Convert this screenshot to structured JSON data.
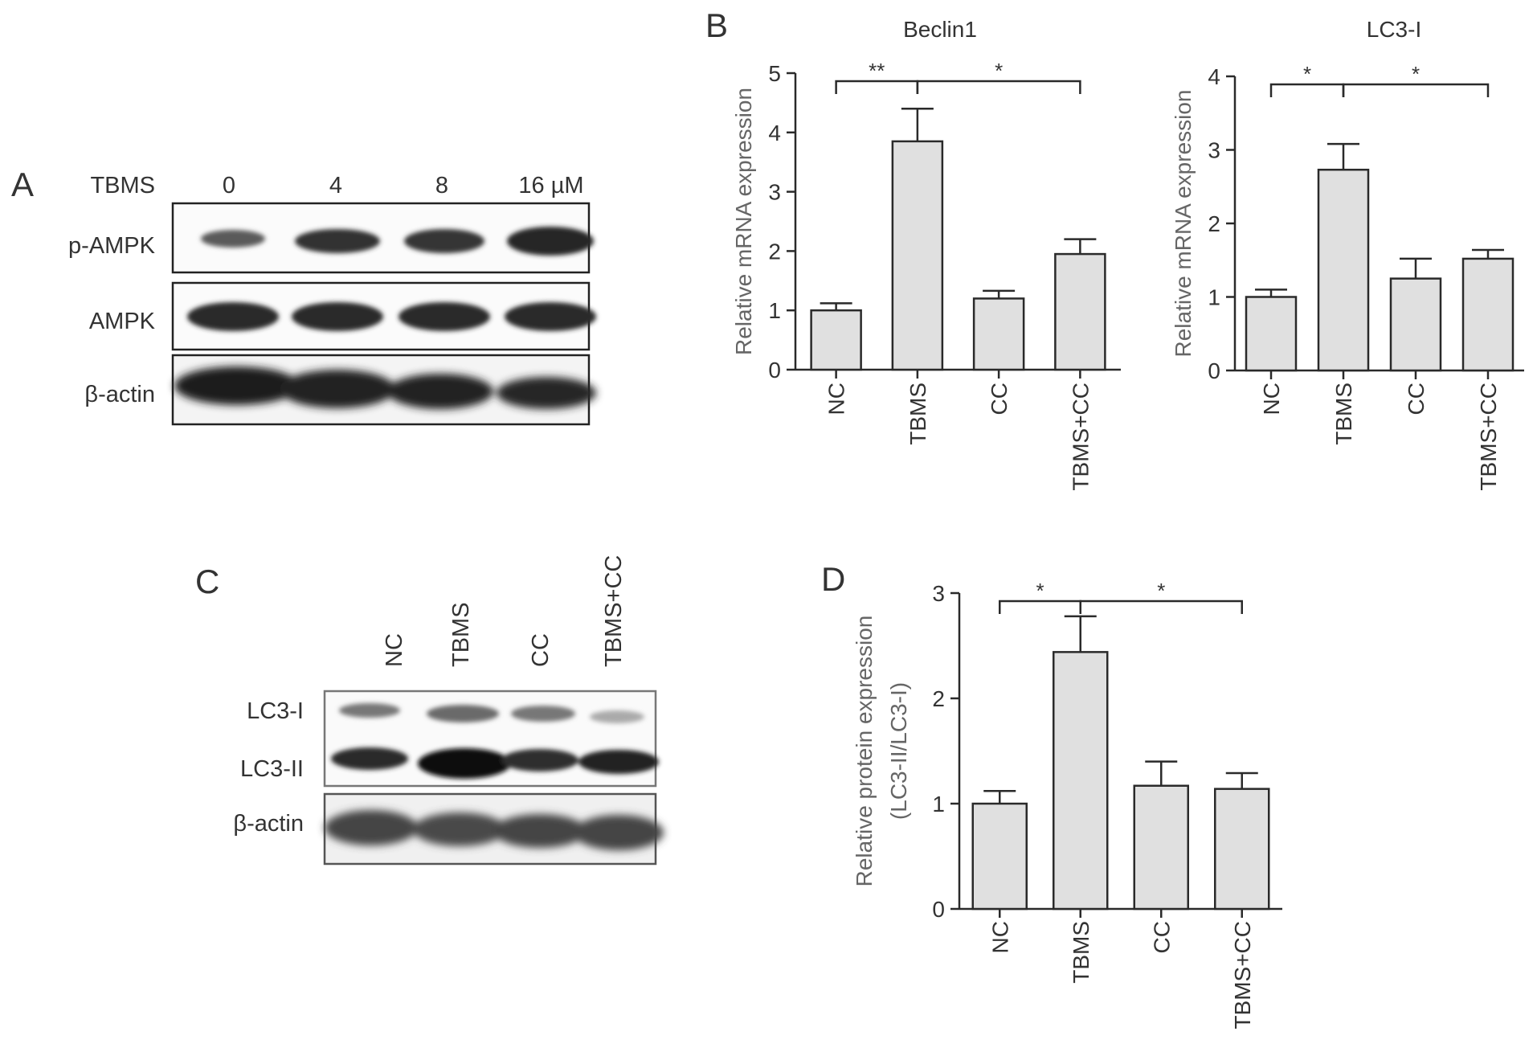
{
  "panels": {
    "A": {
      "letter": "A",
      "treatment_label": "TBMS",
      "doses": [
        "0",
        "4",
        "8",
        "16 µM"
      ],
      "rows": [
        "p-AMPK",
        "AMPK",
        "β-actin"
      ]
    },
    "B": {
      "letter": "B"
    },
    "C": {
      "letter": "C",
      "lanes": [
        "NC",
        "TBMS",
        "CC",
        "TBMS+CC"
      ],
      "rows": [
        "LC3-I",
        "LC3-II",
        "β-actin"
      ]
    },
    "D": {
      "letter": "D"
    }
  },
  "chart_data": [
    {
      "id": "beclin1",
      "type": "bar",
      "title": "Beclin1",
      "categories": [
        "NC",
        "TBMS",
        "CC",
        "TBMS+CC"
      ],
      "values": [
        1.0,
        3.85,
        1.2,
        1.95
      ],
      "errors": [
        0.12,
        0.55,
        0.13,
        0.25
      ],
      "ylabel": "Relative mRNA expression",
      "ylim": [
        0,
        5
      ],
      "yticks": [
        "0",
        "1",
        "2",
        "3",
        "4",
        "5"
      ],
      "significance": [
        {
          "from": 0,
          "to": 1,
          "label": "**"
        },
        {
          "from": 1,
          "to": 3,
          "label": "*"
        }
      ],
      "bar_color": "#e0e0e0"
    },
    {
      "id": "lc3i",
      "type": "bar",
      "title": "LC3-I",
      "categories": [
        "NC",
        "TBMS",
        "CC",
        "TBMS+CC"
      ],
      "values": [
        1.0,
        2.73,
        1.25,
        1.52
      ],
      "errors": [
        0.1,
        0.35,
        0.27,
        0.12
      ],
      "ylabel": "Relative mRNA expression",
      "ylim": [
        0,
        4
      ],
      "yticks": [
        "0",
        "1",
        "2",
        "3",
        "4"
      ],
      "significance": [
        {
          "from": 0,
          "to": 1,
          "label": "*"
        },
        {
          "from": 1,
          "to": 3,
          "label": "*"
        }
      ],
      "bar_color": "#e0e0e0"
    },
    {
      "id": "lc3ratio",
      "type": "bar",
      "title": "",
      "categories": [
        "NC",
        "TBMS",
        "CC",
        "TBMS+CC"
      ],
      "values": [
        1.0,
        2.44,
        1.17,
        1.14
      ],
      "errors": [
        0.12,
        0.34,
        0.23,
        0.15
      ],
      "ylabel": "Relative protein expression",
      "ylabel2": "(LC3-II/LC3-I)",
      "ylim": [
        0,
        3
      ],
      "yticks": [
        "0",
        "1",
        "2",
        "3"
      ],
      "significance": [
        {
          "from": 0,
          "to": 1,
          "label": "*"
        },
        {
          "from": 1,
          "to": 3,
          "label": "*"
        }
      ],
      "bar_color": "#e0e0e0"
    }
  ]
}
